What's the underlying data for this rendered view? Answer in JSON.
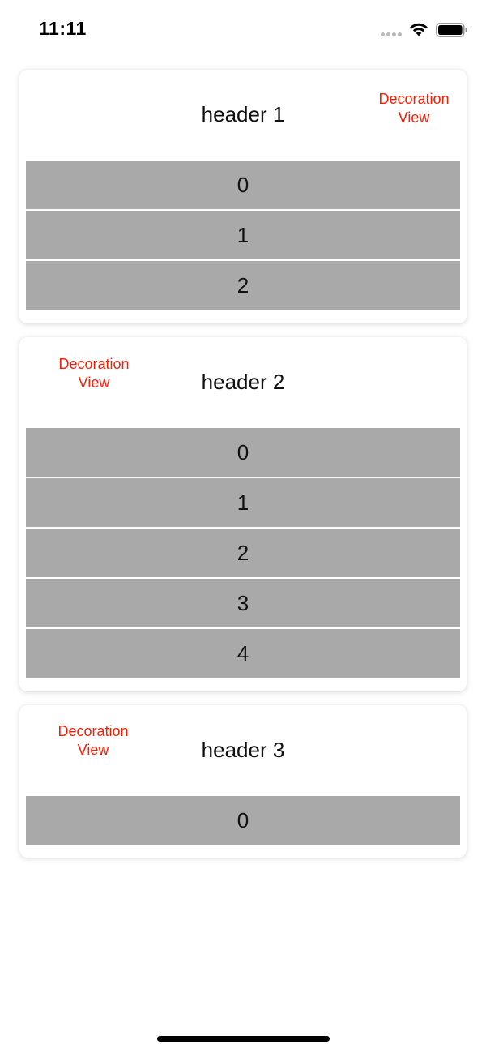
{
  "status_bar": {
    "time": "11:11",
    "signal_icon": "signal-dots-icon",
    "wifi_icon": "wifi-icon",
    "battery_icon": "battery-icon"
  },
  "sections": [
    {
      "header": "header 1",
      "decoration": "Decoration View",
      "decoration_line1": "Decoration",
      "decoration_line2": "View",
      "decoration_side": "right",
      "rows": [
        "0",
        "1",
        "2"
      ]
    },
    {
      "header": "header 2",
      "decoration": "Decoration View",
      "decoration_line1": "Decoration",
      "decoration_line2": "View",
      "decoration_side": "left",
      "rows": [
        "0",
        "1",
        "2",
        "3",
        "4"
      ]
    },
    {
      "header": "header 3",
      "decoration": "Decoration View",
      "decoration_line1": "Decoration",
      "decoration_line2": "View",
      "decoration_side": "left",
      "rows": [
        "0"
      ]
    }
  ],
  "colors": {
    "decoration_text": "#ff1a00",
    "row_background": "#a9a9a9",
    "card_background": "#ffffff"
  }
}
